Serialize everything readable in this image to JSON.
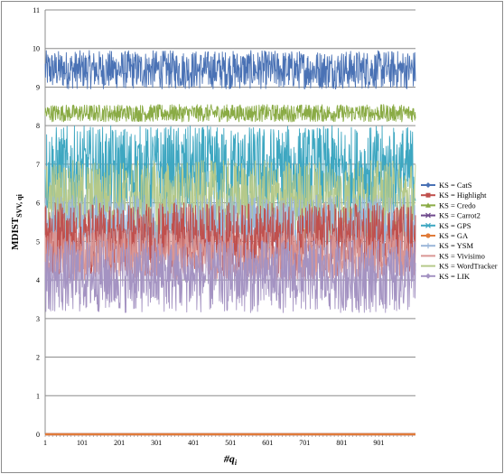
{
  "chart_data": {
    "type": "line",
    "title": "",
    "ylabel": "MDIST",
    "ylabel_subscript": "SVV, qi",
    "xlabel": "#q",
    "xlabel_subscript": "i",
    "ylim": [
      0,
      11
    ],
    "yticks": [
      "0",
      "1",
      "2",
      "3",
      "4",
      "5",
      "6",
      "7",
      "8",
      "9",
      "10",
      "11"
    ],
    "xlim": [
      1,
      1000
    ],
    "xticks": [
      "1",
      "101",
      "201",
      "301",
      "401",
      "501",
      "601",
      "701",
      "801",
      "901"
    ],
    "n_points": 1000,
    "grid": "horizontal",
    "legend_position": "right",
    "series": [
      {
        "name": "KS = CatS",
        "color": "#4a72b5",
        "marker": "diamond",
        "band": [
          8.95,
          9.95
        ]
      },
      {
        "name": "KS = Highlight",
        "color": "#c0504d",
        "marker": "square",
        "band": [
          4.1,
          6.0
        ]
      },
      {
        "name": "KS = Credo",
        "color": "#8aab45",
        "marker": "triangle",
        "band": [
          8.1,
          8.55
        ]
      },
      {
        "name": "KS = Carrot2",
        "color": "#6f4a8c",
        "marker": "x",
        "band": [
          0.0,
          0.02
        ]
      },
      {
        "name": "KS = GPS",
        "color": "#3ea7c1",
        "marker": "star",
        "band": [
          5.6,
          8.0
        ]
      },
      {
        "name": "KS = GA",
        "color": "#e07b39",
        "marker": "circle",
        "band": [
          0.0,
          0.02
        ]
      },
      {
        "name": "KS = YSM",
        "color": "#9ab6d9",
        "marker": "plus",
        "band": [
          4.5,
          6.2
        ]
      },
      {
        "name": "KS = Vivisimo",
        "color": "#d99694",
        "marker": "dash",
        "band": [
          4.0,
          5.3
        ]
      },
      {
        "name": "KS = WordTracker",
        "color": "#b5c98a",
        "marker": "dash",
        "band": [
          5.0,
          7.1
        ]
      },
      {
        "name": "KS = LIK",
        "color": "#a493c2",
        "marker": "diamond",
        "band": [
          3.15,
          5.05
        ]
      }
    ],
    "draw_order": [
      0,
      2,
      4,
      8,
      6,
      1,
      7,
      9,
      3,
      5
    ]
  }
}
